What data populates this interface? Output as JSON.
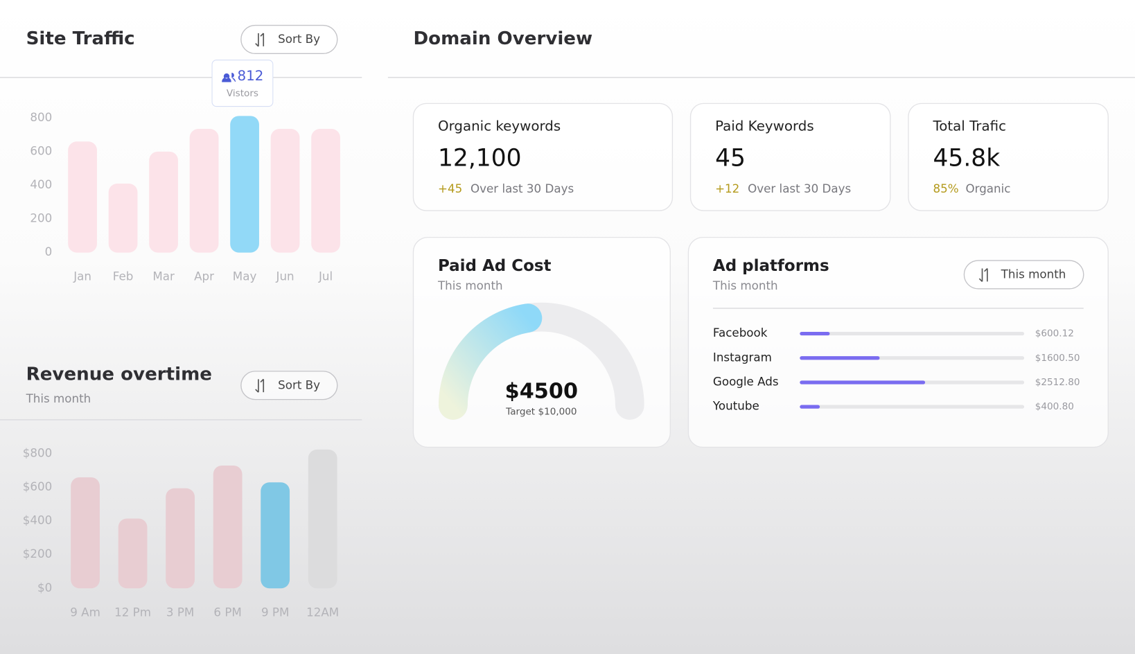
{
  "chart_data": [
    {
      "type": "bar",
      "title": "Site Traffic",
      "sort_button": "Sort By",
      "categories": [
        "Jan",
        "Feb",
        "Mar",
        "Apr",
        "May",
        "Jun",
        "Jul"
      ],
      "values": [
        660,
        410,
        600,
        735,
        812,
        735,
        735
      ],
      "colors": [
        "#fce3e9",
        "#fce3e9",
        "#fce3e9",
        "#fce3e9",
        "#92d9f7",
        "#fce3e9",
        "#fce3e9"
      ],
      "tooltip_label": "Vistors",
      "ylim": [
        0,
        800
      ],
      "yticks": [
        0,
        200,
        400,
        600,
        800
      ]
    },
    {
      "type": "bar",
      "title": "Revenue overtime",
      "subtitle": "This month",
      "sort_button": "Sort By",
      "categories": [
        "9 Am",
        "12 Pm",
        "3 PM",
        "6 PM",
        "9 PM",
        "12AM"
      ],
      "values": [
        660,
        415,
        595,
        730,
        630,
        825
      ],
      "colors": [
        "#e8cdd2",
        "#e8cdd2",
        "#e8cdd2",
        "#e8cdd2",
        "#80c8e5",
        "#dcdcdd"
      ],
      "ylim": [
        0,
        800
      ],
      "yticks": [
        {
          "value": 0,
          "label": "$0"
        },
        {
          "value": 200,
          "label": "$200"
        },
        {
          "value": 400,
          "label": "$400"
        },
        {
          "value": 600,
          "label": "$600"
        },
        {
          "value": 800,
          "label": "$800"
        }
      ]
    },
    {
      "type": "hbar",
      "title": "Ad platforms",
      "subtitle": "This month",
      "button": "This month",
      "categories": [
        "Facebook",
        "Instagram",
        "Google Ads",
        "Youtube"
      ],
      "values": [
        600.12,
        1600.5,
        2512.8,
        400.8
      ],
      "value_labels": [
        "$600.12",
        "$1600.50",
        "$2512.80",
        "$400.80"
      ],
      "color": "#7a6cf0",
      "xlim": [
        0,
        4500
      ]
    }
  ],
  "domain_overview": {
    "title": "Domain Overview",
    "cards": [
      {
        "label": "Organic keywords",
        "value": "12,100",
        "delta": "+45",
        "note": "Over last 30 Days"
      },
      {
        "label": "Paid Keywords",
        "value": "45",
        "delta": "+12",
        "note": "Over last 30 Days"
      },
      {
        "label": "Total Trafic",
        "value": "45.8k",
        "delta": "85%",
        "note": "Organic"
      }
    ],
    "paid_ad_cost": {
      "title": "Paid Ad Cost",
      "subtitle": "This month",
      "value": 4500,
      "value_label": "$4500",
      "target": 10000,
      "target_label": "Target $10,000"
    }
  }
}
